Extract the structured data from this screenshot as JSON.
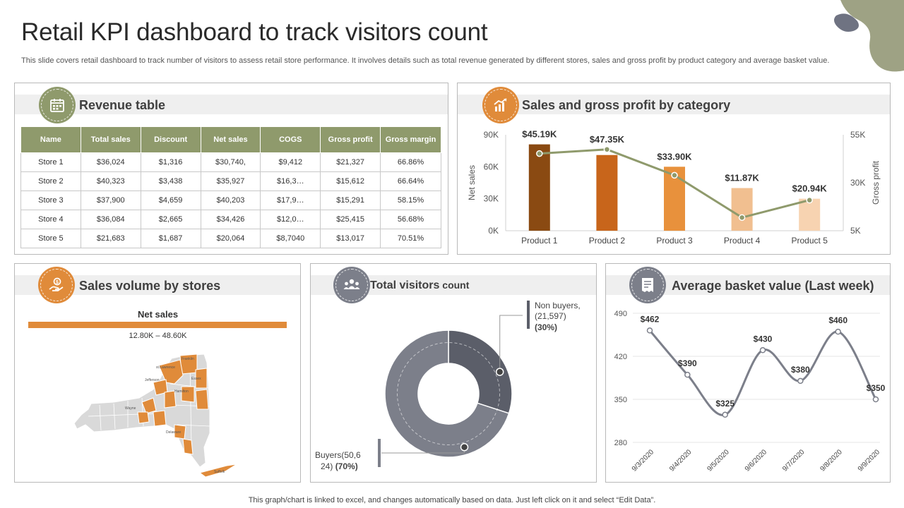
{
  "page": {
    "title": "Retail KPI dashboard to track visitors count",
    "subtitle": "This slide covers retail dashboard to track number of visitors to assess retail store performance. It involves details such as total revenue generated by different stores, sales and gross profit by product category and average basket value.",
    "footer": "This graph/chart is linked to excel,  and changes automatically based on data. Just left click on it and select “Edit Data”."
  },
  "colors": {
    "olive": "#8f9a6c",
    "orange": "#e08b3a",
    "slate": "#7c7f8a",
    "dark_slate": "#5b5e69"
  },
  "revenue": {
    "title": "Revenue table",
    "icon": "calendar-icon",
    "headers": [
      "Name",
      "Total sales",
      "Discount",
      "Net sales",
      "COGS",
      "Gross profit",
      "Gross margin"
    ],
    "rows": [
      [
        "Store 1",
        "$36,024",
        "$1,316",
        "$30,740,",
        "$9,412",
        "$21,327",
        "66.86%"
      ],
      [
        "Store 2",
        "$40,323",
        "$3,438",
        "$35,927",
        "$16,3…",
        "$15,612",
        "66.64%"
      ],
      [
        "Store 3",
        "$37,900",
        "$4,659",
        "$40,203",
        "$17,9…",
        "$15,291",
        "58.15%"
      ],
      [
        "Store 4",
        "$36,084",
        "$2,665",
        "$34,426",
        "$12,0…",
        "$25,415",
        "56.68%"
      ],
      [
        "Store 5",
        "$21,683",
        "$1,687",
        "$20,064",
        "$8,7040",
        "$13,017",
        "70.51%"
      ]
    ]
  },
  "sales_category": {
    "title": "Sales and gross profit by category",
    "icon": "chart-growth-icon"
  },
  "sales_volume": {
    "title": "Sales volume by stores",
    "icon": "money-hand-icon",
    "legend_title": "Net sales",
    "range": "12.80K – 48.60K",
    "map_labels": [
      "Franklin",
      "st.Lawrence",
      "Jefferson",
      "Essex",
      "Hamilton",
      "Wayne",
      "Delaware",
      "Suffolk"
    ]
  },
  "visitors": {
    "title_bold": "Total visitors",
    "title_rest": " count",
    "icon": "people-group-icon"
  },
  "basket": {
    "title": "Average basket value (Last week)",
    "icon": "receipt-icon"
  },
  "chart_data": [
    {
      "id": "sales_gross_profit",
      "type": "bar",
      "categories": [
        "Product 1",
        "Product 2",
        "Product 3",
        "Product 4",
        "Product 5"
      ],
      "series": [
        {
          "name": "Net sales",
          "type": "bar",
          "axis": "left",
          "values": [
            81000,
            71000,
            60000,
            40000,
            30000
          ],
          "colors": [
            "#8a4a12",
            "#c8651b",
            "#e8913c",
            "#f1bf90",
            "#f7d3b1"
          ]
        },
        {
          "name": "Gross profit",
          "type": "line",
          "axis": "right",
          "values": [
            45190,
            47350,
            33900,
            11870,
            20940
          ],
          "color": "#8f9a6c"
        }
      ],
      "data_labels": [
        "$45.19K",
        "$47.35K",
        "$33.90K",
        "$11.87K",
        "$20.94K"
      ],
      "ylabel": "Net sales",
      "ylabel_right": "Gross profit",
      "ylim": [
        0,
        90000
      ],
      "ylim_right": [
        5000,
        55000
      ],
      "yticks": [
        "0K",
        "30K",
        "60K",
        "90K"
      ],
      "yticks_right": [
        "5K",
        "30K",
        "55K"
      ]
    },
    {
      "id": "visitors",
      "type": "pie",
      "style": "donut",
      "slices": [
        {
          "name": "Non buyers",
          "count": "(21,597)",
          "value": 30,
          "label": "(30%)",
          "color": "#5b5e69"
        },
        {
          "name": "Buyers",
          "count": "(50,624)",
          "value": 70,
          "label": "(70%)",
          "color": "#7c7f8a"
        }
      ]
    },
    {
      "id": "basket",
      "type": "line",
      "x": [
        "9/3/2020",
        "9/4/2020",
        "9/5/2020",
        "9/6/2020",
        "9/7/2020",
        "9/8/2020",
        "9/9/2020"
      ],
      "values": [
        462,
        390,
        325,
        430,
        380,
        460,
        350
      ],
      "data_labels": [
        "$462",
        "$390",
        "$325",
        "$430",
        "$380",
        "$460",
        "$350"
      ],
      "ylim": [
        280,
        490
      ],
      "yticks": [
        "280",
        "350",
        "420",
        "490"
      ],
      "color": "#7c7f8a"
    }
  ]
}
